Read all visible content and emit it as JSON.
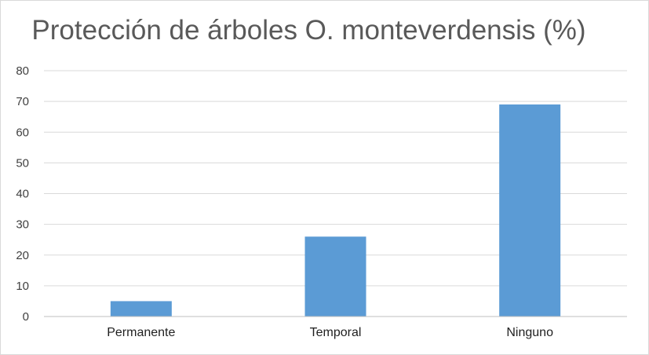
{
  "chart_data": {
    "type": "bar",
    "title": "Protección de árboles O. monteverdensis (%)",
    "xlabel": "",
    "ylabel": "",
    "categories": [
      "Permanente",
      "Temporal",
      "Ninguno"
    ],
    "values": [
      5,
      26,
      69
    ],
    "ylim": [
      0,
      80
    ],
    "yticks": [
      0,
      10,
      20,
      30,
      40,
      50,
      60,
      70,
      80
    ],
    "grid": true,
    "legend": "none",
    "bar_color": "#5b9bd5",
    "grid_color": "#d9d9d9",
    "axis_color": "#bfbfbf"
  }
}
